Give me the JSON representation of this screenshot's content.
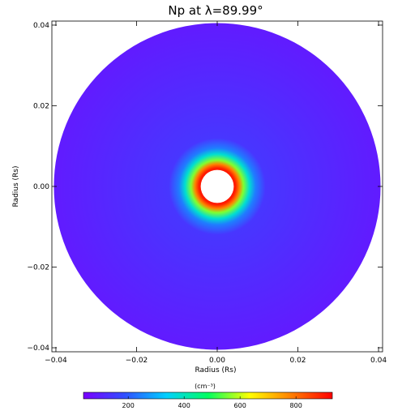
{
  "chart_data": {
    "type": "heatmap",
    "title": "Np at λ=89.99°",
    "xlabel": "Radius (Rs)",
    "ylabel": "Radius (Rs)",
    "xlim": [
      -0.041,
      0.041
    ],
    "ylim": [
      -0.041,
      0.041
    ],
    "x_ticks": [
      {
        "value": -0.04,
        "label": "−0.04"
      },
      {
        "value": -0.02,
        "label": "−0.02"
      },
      {
        "value": 0.0,
        "label": "0.00"
      },
      {
        "value": 0.02,
        "label": "0.02"
      },
      {
        "value": 0.04,
        "label": "0.04"
      }
    ],
    "y_ticks": [
      {
        "value": 0.04,
        "label": "0.04"
      },
      {
        "value": 0.02,
        "label": "0.02"
      },
      {
        "value": 0.0,
        "label": "0.00"
      },
      {
        "value": -0.02,
        "label": "−0.02"
      },
      {
        "value": -0.04,
        "label": "−0.04"
      }
    ],
    "disk_outer_radius": 0.0405,
    "disk_inner_radius": 0.0045,
    "radial_profile": [
      {
        "r": 0.0045,
        "value": 900
      },
      {
        "r": 0.0055,
        "value": 780
      },
      {
        "r": 0.0065,
        "value": 560
      },
      {
        "r": 0.008,
        "value": 380
      },
      {
        "r": 0.0095,
        "value": 240
      },
      {
        "r": 0.012,
        "value": 140
      },
      {
        "r": 0.0405,
        "value": 90
      }
    ],
    "colorbar": {
      "unit_label": "(cm⁻³)",
      "range": [
        40,
        930
      ],
      "ticks": [
        {
          "value": 200,
          "label": "200"
        },
        {
          "value": 400,
          "label": "400"
        },
        {
          "value": 600,
          "label": "600"
        },
        {
          "value": 800,
          "label": "800"
        }
      ],
      "colors": [
        "#7a00ff",
        "#3050ff",
        "#00d0ff",
        "#00ff60",
        "#ffff00",
        "#ff8000",
        "#ff0000"
      ]
    },
    "grid": false
  }
}
